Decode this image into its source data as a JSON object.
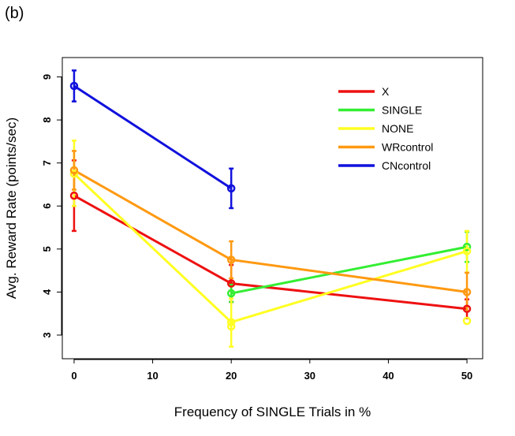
{
  "panel_label": "(b)",
  "chart_data": {
    "type": "line",
    "xlabel": "Frequency of SINGLE Trials in %",
    "ylabel": "Avg. Reward Rate (points/sec)",
    "xlim": [
      -1.5,
      52
    ],
    "ylim": [
      2.45,
      9.45
    ],
    "xticks": [
      0,
      10,
      20,
      30,
      40,
      50
    ],
    "yticks": [
      3,
      4,
      5,
      6,
      7,
      8,
      9
    ],
    "legend_position": "top-right",
    "series": [
      {
        "name": "X",
        "color": "#ee1111",
        "x": [
          0,
          20,
          50
        ],
        "y": [
          6.24,
          4.2,
          3.61
        ],
        "err_low": [
          5.42,
          3.77,
          3.39
        ],
        "err_high": [
          7.06,
          4.63,
          3.83
        ]
      },
      {
        "name": "SINGLE",
        "color": "#33ee33",
        "x": [
          20,
          50
        ],
        "y": [
          3.97,
          5.05
        ],
        "err_low": [
          3.77,
          4.7
        ],
        "err_high": [
          4.17,
          5.4
        ]
      },
      {
        "name": "NONE",
        "color": "#ffff22",
        "x": [
          0,
          20,
          50
        ],
        "y": [
          6.75,
          3.3,
          4.95
        ],
        "err_low": [
          6.0,
          2.73,
          4.45
        ],
        "err_high": [
          7.52,
          3.85,
          5.42
        ]
      },
      {
        "name": "WRcontrol",
        "color": "#ff9911",
        "x": [
          0,
          20,
          50
        ],
        "y": [
          6.83,
          4.75,
          4.0
        ],
        "err_low": [
          6.38,
          4.32,
          3.55
        ],
        "err_high": [
          7.28,
          5.18,
          4.45
        ]
      },
      {
        "name": "CNcontrol",
        "color": "#1111dd",
        "x": [
          0,
          20
        ],
        "y": [
          8.79,
          6.41
        ],
        "err_low": [
          8.43,
          5.95
        ],
        "err_high": [
          9.15,
          6.87
        ]
      }
    ],
    "extra_points": [
      {
        "series": "NONE",
        "x": 20,
        "y": 3.2,
        "color": "#ffff22"
      },
      {
        "series": "NONE",
        "x": 50,
        "y": 3.33,
        "color": "#ffff22"
      }
    ]
  }
}
